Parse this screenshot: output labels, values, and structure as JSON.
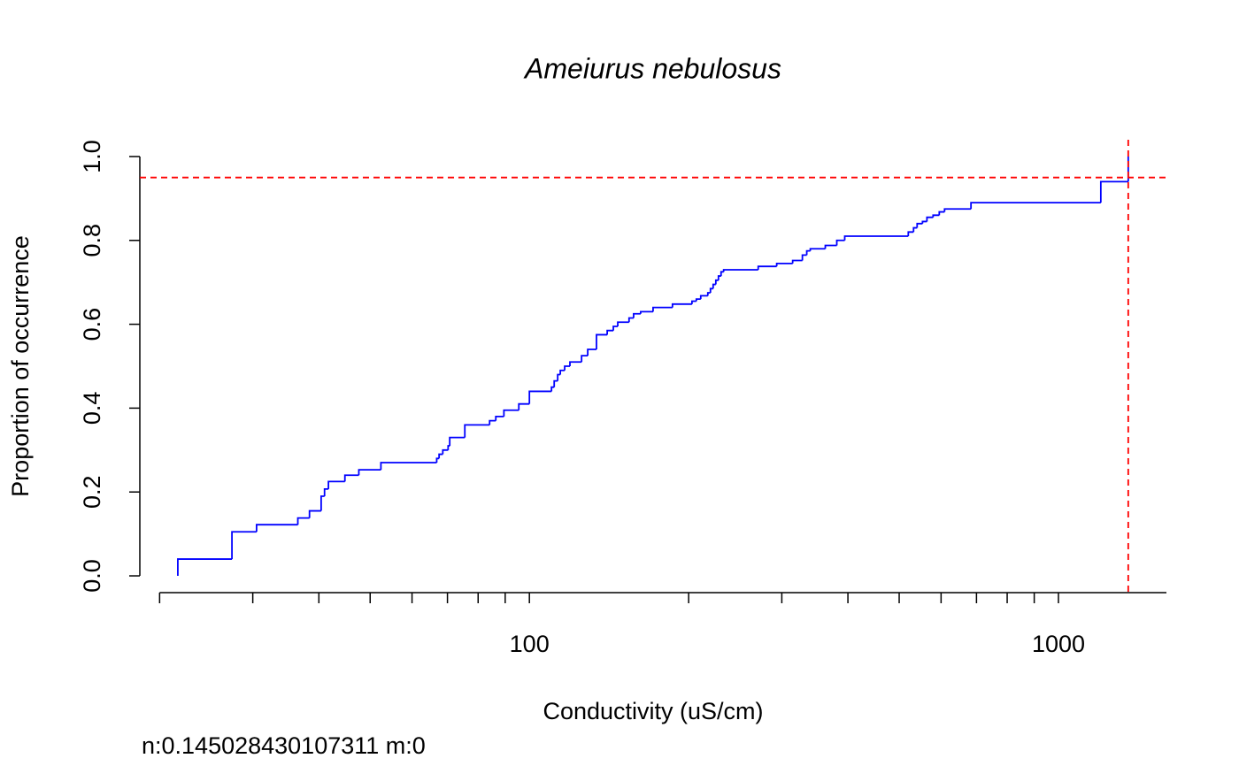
{
  "chart_data": {
    "type": "step",
    "title": "Ameiurus nebulosus",
    "xlabel": "Conductivity (uS/cm)",
    "ylabel": "Proportion of occurrence",
    "footnote": "n:0.145028430107311 m:0",
    "xscale": "log",
    "xlim": [
      18.35,
      1600
    ],
    "ylim": [
      -0.04,
      1.04
    ],
    "xticks": [
      100,
      1000
    ],
    "xminorticks": [
      20,
      30,
      40,
      50,
      60,
      70,
      80,
      90,
      200,
      300,
      400,
      500,
      600,
      700,
      800,
      900
    ],
    "yticks": [
      {
        "value": 0,
        "label": "0.0"
      },
      0.2,
      0.4,
      0.6,
      0.8,
      {
        "value": 1,
        "label": "1.0"
      }
    ],
    "series": [
      {
        "color": "#0000ff",
        "x": [
          21.65,
          21.65,
          27.4,
          30.5,
          36.5,
          38.4,
          40.4,
          41.0,
          41.7,
          44.8,
          47.6,
          52.4,
          66.8,
          67.5,
          68.6,
          70.2,
          70.7,
          75.5,
          84.1,
          86.4,
          89.5,
          95.5,
          100,
          110.1,
          111.4,
          113.1,
          114.4,
          116.6,
          119.3,
          125.5,
          128.9,
          133.9,
          140.3,
          144.1,
          146.9,
          154.3,
          157.4,
          162.3,
          171.3,
          186.4,
          202.9,
          206.8,
          210.8,
          217.4,
          219.9,
          222.5,
          225.1,
          227.7,
          230.3,
          232.9,
          270.7,
          293.4,
          314.5,
          328.1,
          334.4,
          339.6,
          362.5,
          381.1,
          394.5,
          520.2,
          532.3,
          540.6,
          553.4,
          564.2,
          579.5,
          595.3,
          609.2,
          683.4,
          1202.5,
          1355
        ],
        "values": [
          0,
          0.04,
          0.105,
          0.122,
          0.138,
          0.155,
          0.19,
          0.207,
          0.225,
          0.24,
          0.253,
          0.27,
          0.28,
          0.29,
          0.3,
          0.31,
          0.33,
          0.36,
          0.37,
          0.38,
          0.395,
          0.41,
          0.44,
          0.45,
          0.465,
          0.48,
          0.49,
          0.5,
          0.51,
          0.525,
          0.54,
          0.575,
          0.585,
          0.595,
          0.605,
          0.615,
          0.625,
          0.63,
          0.64,
          0.648,
          0.655,
          0.66,
          0.668,
          0.675,
          0.685,
          0.695,
          0.705,
          0.715,
          0.725,
          0.73,
          0.738,
          0.745,
          0.752,
          0.765,
          0.775,
          0.78,
          0.788,
          0.8,
          0.81,
          0.82,
          0.83,
          0.84,
          0.845,
          0.855,
          0.86,
          0.868,
          0.875,
          0.89,
          0.94,
          1.0
        ]
      }
    ],
    "hline": {
      "value": 0.95,
      "color": "#ff0000"
    },
    "vline": {
      "value": 1355,
      "color": "#ff0000"
    }
  }
}
